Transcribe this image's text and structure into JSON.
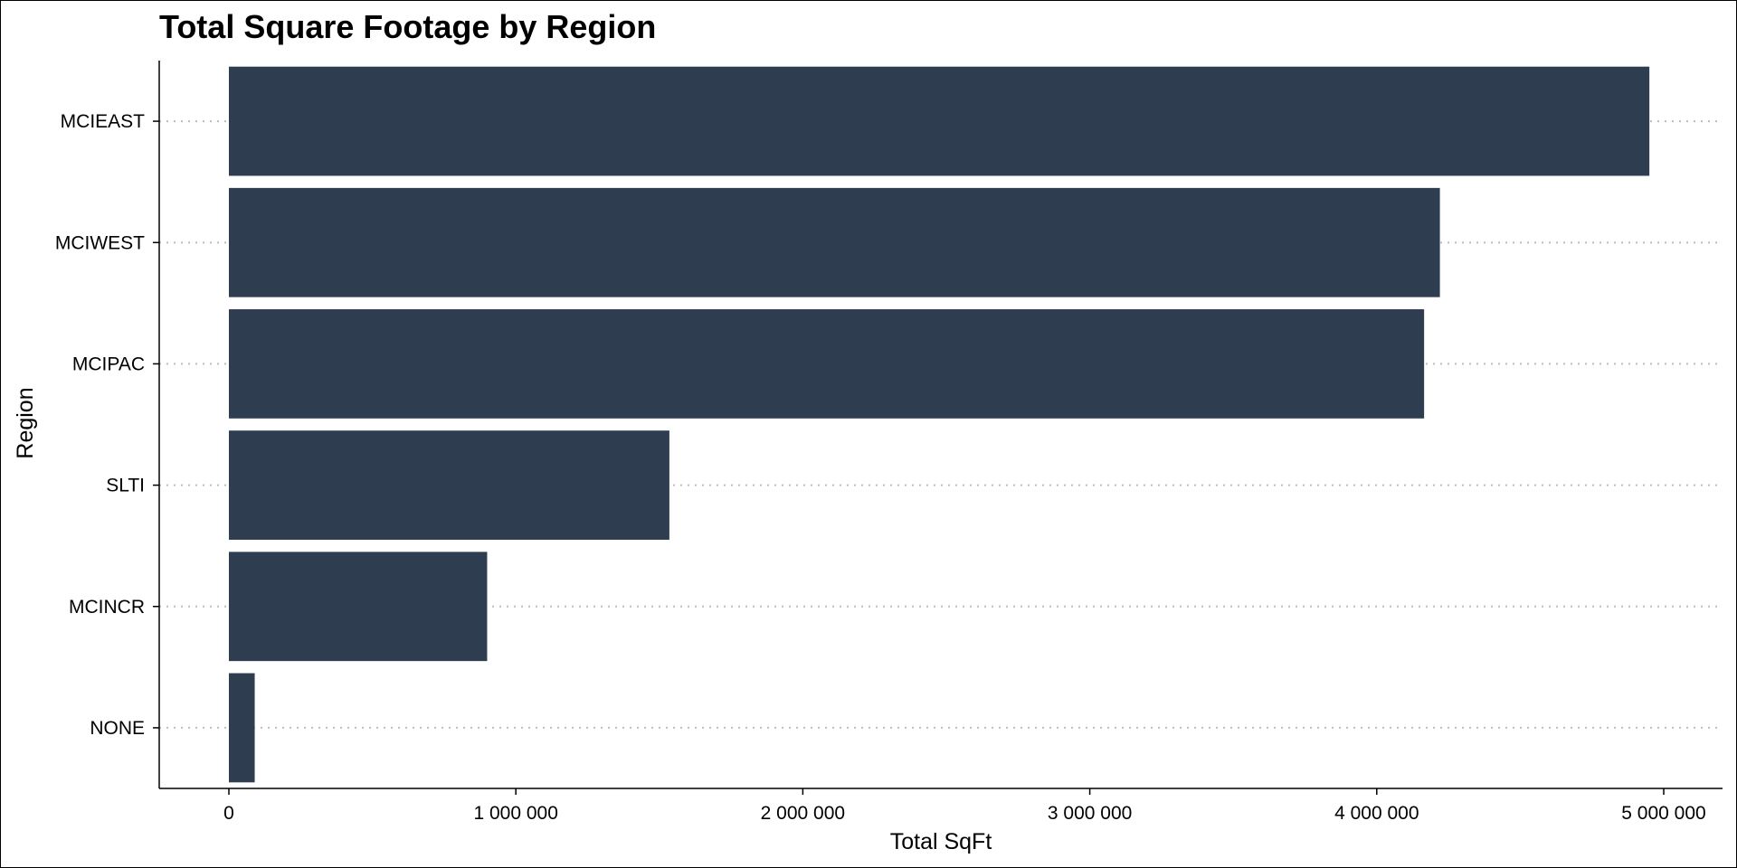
{
  "chart_data": {
    "type": "bar",
    "orientation": "horizontal",
    "title": "Total Square Footage by Region",
    "xlabel": "Total SqFt",
    "ylabel": "Region",
    "categories": [
      "MCIEAST",
      "MCIWEST",
      "MCIPAC",
      "SLTI",
      "MCINCR",
      "NONE"
    ],
    "values": [
      4950000,
      4220000,
      4165000,
      1535000,
      900000,
      90000
    ],
    "xlim": [
      -245000,
      5200000
    ],
    "xticks": [
      0,
      1000000,
      2000000,
      3000000,
      4000000,
      5000000
    ],
    "xtick_labels": [
      "0",
      "1 000 000",
      "2 000 000",
      "3 000 000",
      "4 000 000",
      "5 000 000"
    ],
    "bar_color": "#2e3e50",
    "grid": "dotted horizontal"
  }
}
